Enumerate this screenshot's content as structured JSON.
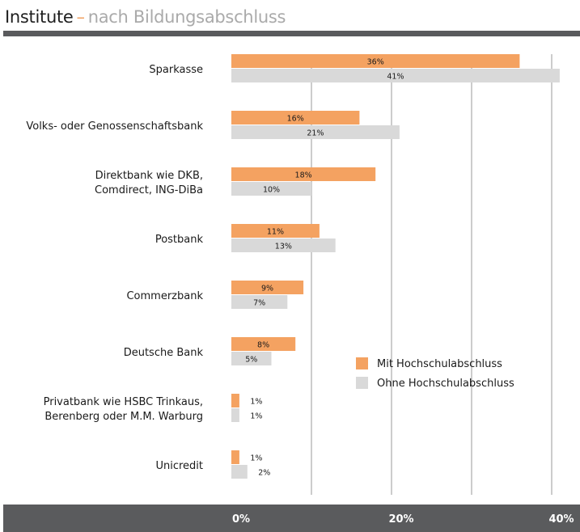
{
  "header": {
    "title": "Institute",
    "separator": "–",
    "subtitle": "nach Bildungsabschluss"
  },
  "colors": {
    "series_1": "#f4a261",
    "series_2": "#d9d9d9",
    "gridline": "#9a9a9a",
    "header_bar": "#5a5b5d",
    "title_separator": "#f0a060",
    "subtitle": "#aaaaaa"
  },
  "chart_data": {
    "type": "bar",
    "orientation": "horizontal",
    "categories": [
      [
        "Sparkasse"
      ],
      [
        "Volks- oder Genossenschaftsbank"
      ],
      [
        "Direktbank wie DKB,",
        "Comdirect, ING-DiBa"
      ],
      [
        "Postbank"
      ],
      [
        "Commerzbank"
      ],
      [
        "Deutsche Bank"
      ],
      [
        "Privatbank wie HSBC Trinkaus,",
        "Berenberg oder M.M. Warburg"
      ],
      [
        "Unicredit"
      ]
    ],
    "series": [
      {
        "name": "Mit Hochschulabschluss",
        "values": [
          36,
          16,
          18,
          11,
          9,
          8,
          1,
          1
        ],
        "labels": [
          "36%",
          "16%",
          "18%",
          "11%",
          "9%",
          "8%",
          "1%",
          "1%"
        ]
      },
      {
        "name": "Ohne Hochschulabschluss",
        "values": [
          41,
          21,
          10,
          13,
          7,
          5,
          1,
          2
        ],
        "labels": [
          "41%",
          "21%",
          "10%",
          "13%",
          "7%",
          "5%",
          "1%",
          "2%"
        ]
      }
    ],
    "xlim": [
      0,
      40
    ],
    "gridlines": [
      10,
      20,
      30,
      40
    ],
    "xticks": [
      {
        "value": 0,
        "label": "0%"
      },
      {
        "value": 20,
        "label": "20%"
      },
      {
        "value": 40,
        "label": "40%"
      }
    ],
    "legend": {
      "placement": "right-middle"
    },
    "grid": true
  }
}
